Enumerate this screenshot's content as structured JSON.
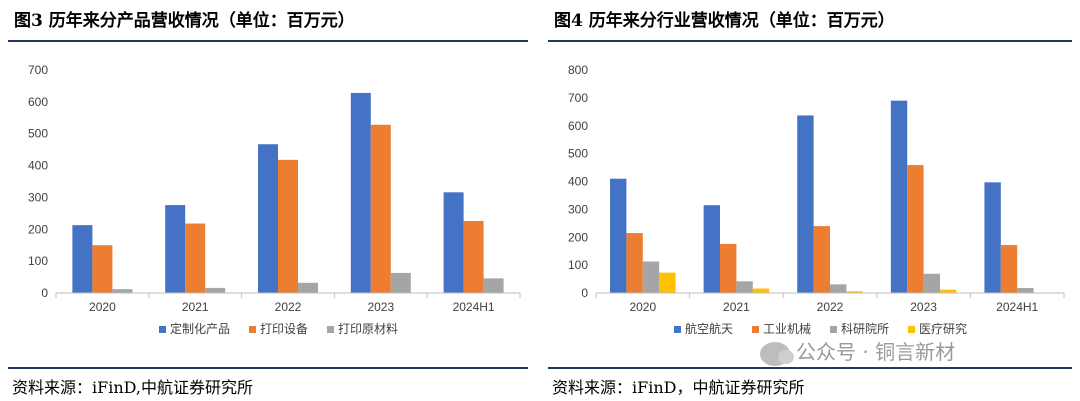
{
  "left": {
    "title": "图3 历年来分产品营收情况（单位：百万元）",
    "source": "资料来源：iFinD,中航证券研究所"
  },
  "right": {
    "title": "图4 历年来分行业营收情况（单位：百万元）",
    "source": "资料来源：iFinD，中航证券研究所"
  },
  "watermark": {
    "text": "公众号 · 铜言新材",
    "icon": "wechat-icon"
  },
  "colors": {
    "blue": "#4472c4",
    "orange": "#ed7d31",
    "gray": "#a5a5a5",
    "yellow": "#ffc000"
  },
  "chart_data": [
    {
      "type": "bar",
      "title": "",
      "categories": [
        "2020",
        "2021",
        "2022",
        "2023",
        "2024H1"
      ],
      "ylim": [
        0,
        700
      ],
      "yticks": [
        "0",
        "100",
        "200",
        "300",
        "400",
        "500",
        "600",
        "700"
      ],
      "grid": false,
      "legend_position": "bottom",
      "series": [
        {
          "name": "定制化产品",
          "color": "#4472c4",
          "values": [
            213,
            276,
            467,
            628,
            316
          ]
        },
        {
          "name": "打印设备",
          "color": "#ed7d31",
          "values": [
            150,
            218,
            418,
            528,
            226
          ]
        },
        {
          "name": "打印原材料",
          "color": "#a5a5a5",
          "values": [
            12,
            16,
            32,
            63,
            46
          ]
        }
      ]
    },
    {
      "type": "bar",
      "title": "",
      "categories": [
        "2020",
        "2021",
        "2022",
        "2023",
        "2024H1"
      ],
      "ylim": [
        0,
        800
      ],
      "yticks": [
        "0",
        "100",
        "200",
        "300",
        "400",
        "500",
        "600",
        "700",
        "800"
      ],
      "grid": false,
      "legend_position": "bottom",
      "series": [
        {
          "name": "航空航天",
          "color": "#4472c4",
          "values": [
            410,
            315,
            637,
            690,
            397
          ]
        },
        {
          "name": "工业机械",
          "color": "#ed7d31",
          "values": [
            215,
            176,
            240,
            459,
            172
          ]
        },
        {
          "name": "科研院所",
          "color": "#a5a5a5",
          "values": [
            113,
            42,
            31,
            69,
            18
          ]
        },
        {
          "name": "医疗研究",
          "color": "#ffc000",
          "values": [
            73,
            16,
            6,
            12,
            0
          ]
        }
      ]
    }
  ]
}
